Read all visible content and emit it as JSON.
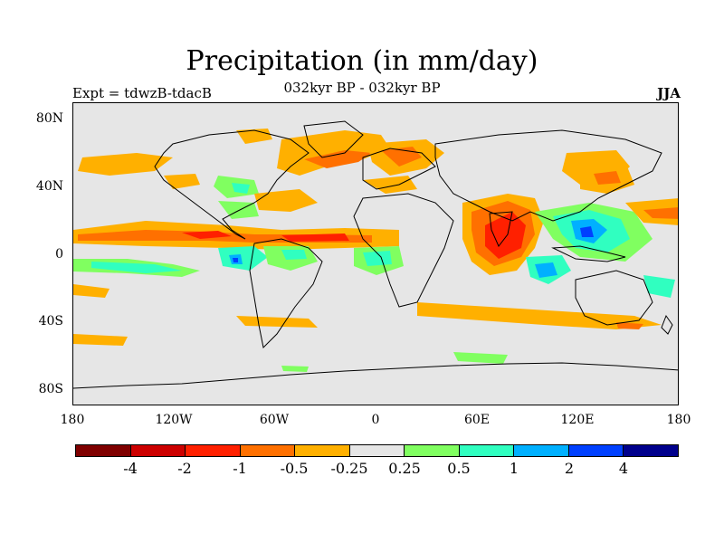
{
  "title": "Precipitation (in mm/day)",
  "subtitle": "032kyr BP - 032kyr BP",
  "left_label": "Expt = tdwzB-tdacB",
  "right_label": "JJA",
  "colors": {
    "land_bg": "#e6e6e6",
    "coastline": "#000000",
    "scale": [
      "#7f0000",
      "#cc0000",
      "#ff2000",
      "#ff7000",
      "#ffb000",
      "#e6e6e6",
      "#80ff60",
      "#30ffc0",
      "#00b0ff",
      "#0040ff",
      "#00008c"
    ]
  },
  "map": {
    "y_ticks": [
      "80N",
      "40N",
      "0",
      "40S",
      "80S"
    ],
    "x_ticks": [
      "180",
      "120W",
      "60W",
      "0",
      "60E",
      "120E",
      "180"
    ],
    "lat_range": [
      -90,
      90
    ],
    "lon_range": [
      -180,
      180
    ]
  },
  "colorbar": {
    "labels": [
      "-4",
      "-2",
      "-1",
      "-0.5",
      "-0.25",
      "0.25",
      "0.5",
      "1",
      "2",
      "4"
    ]
  },
  "chart_data": {
    "type": "heatmap",
    "title": "Precipitation (in mm/day)",
    "subtitle": "032kyr BP - 032kyr BP",
    "season": "JJA",
    "experiment": "tdwzB-tdacB",
    "contour_levels": [
      -4,
      -2,
      -1,
      -0.5,
      -0.25,
      0.25,
      0.5,
      1,
      2,
      4
    ],
    "x_range": [
      -180,
      180
    ],
    "y_range": [
      -90,
      90
    ]
  }
}
